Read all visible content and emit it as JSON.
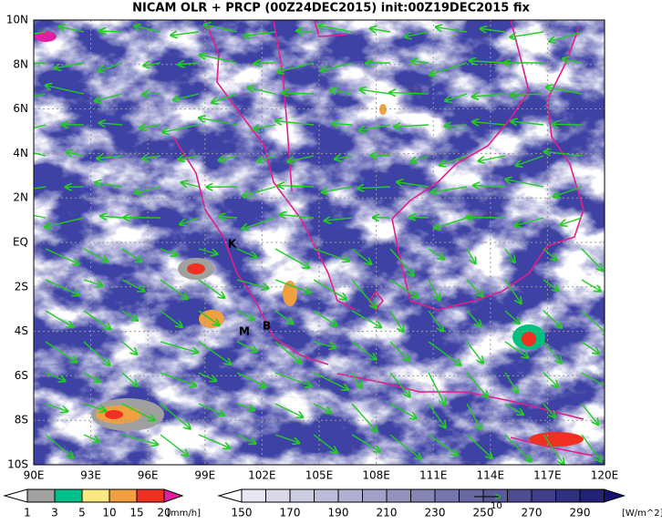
{
  "title": "NICAM OLR + PRCP (00Z24DEC2015) init:00Z19DEC2015 fix",
  "lon_labels": [
    "90E",
    "93E",
    "96E",
    "99E",
    "102E",
    "105E",
    "108E",
    "111E",
    "114E",
    "117E",
    "120E"
  ],
  "lat_labels": [
    "10S",
    "8S",
    "6S",
    "4S",
    "2S",
    "EQ",
    "2N",
    "4N",
    "6N",
    "8N",
    "10N"
  ],
  "stations": [
    "K",
    "M",
    "B"
  ],
  "reference_vector": "10",
  "precip_scale": {
    "labels": [
      "1",
      "3",
      "5",
      "10",
      "15",
      "20"
    ],
    "unit": "[mm/h]"
  },
  "olr_scale": {
    "labels": [
      "150",
      "170",
      "190",
      "210",
      "230",
      "250",
      "270",
      "290"
    ],
    "unit": "[W/m^2]"
  }
}
